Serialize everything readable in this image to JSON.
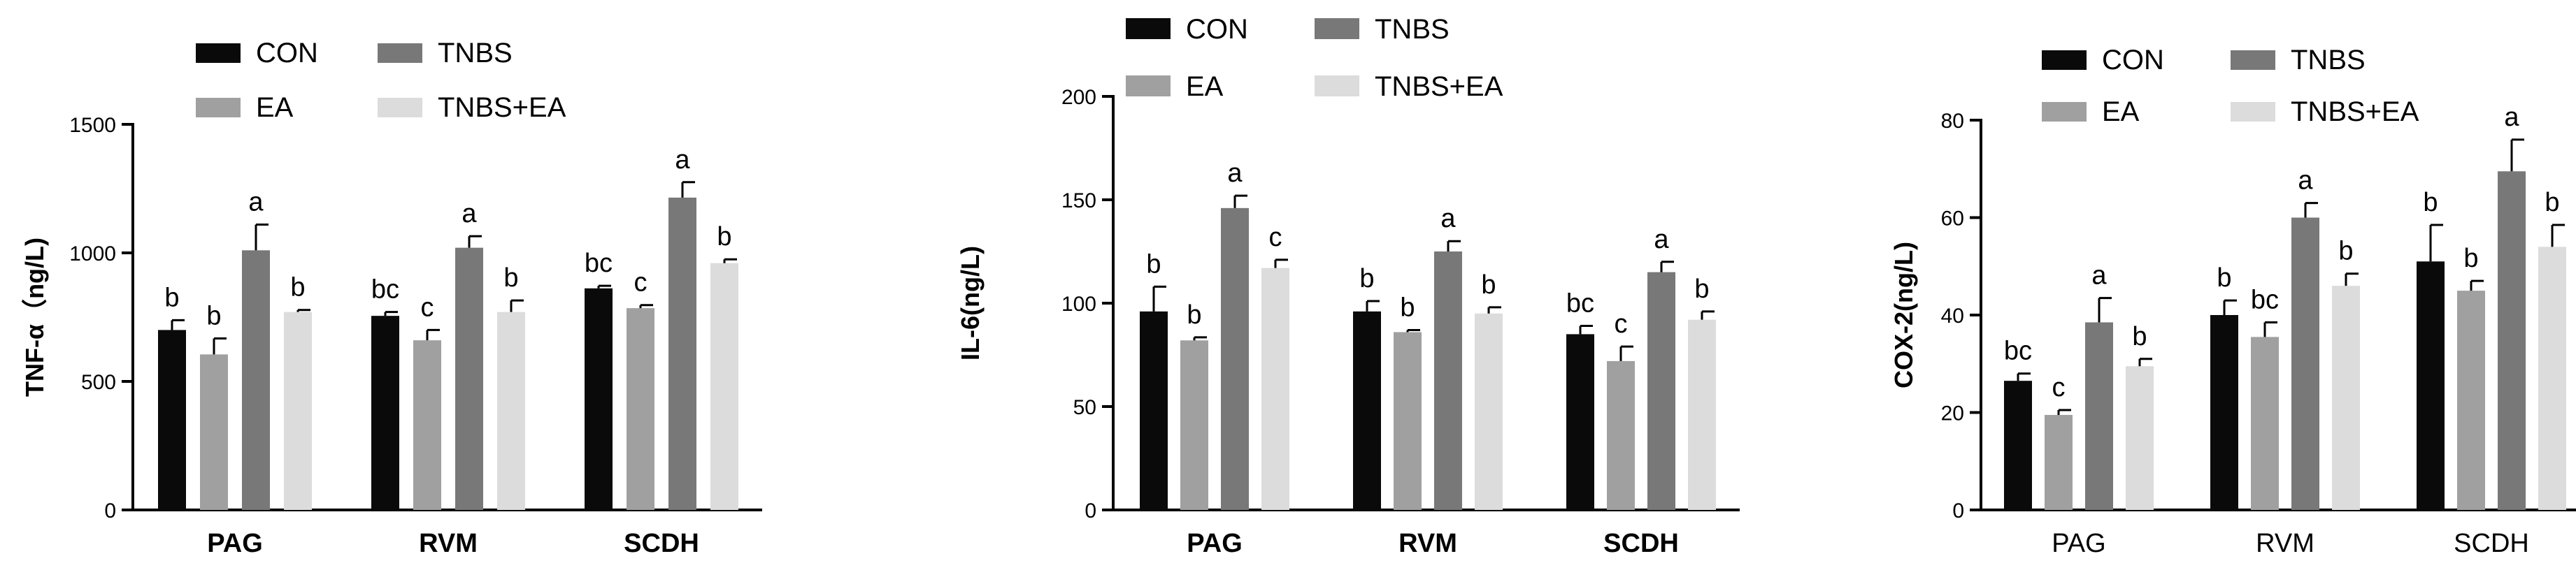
{
  "series_colors": {
    "CON": "#0a0a0a",
    "EA": "#a0a0a0",
    "TNBS": "#787878",
    "TNBS+EA": "#dcdcdc"
  },
  "chart_data": [
    {
      "type": "bar",
      "ylabel": "TNF-α（ng/L)",
      "ylim": [
        0,
        1500
      ],
      "yticks": [
        0,
        500,
        1000,
        1500
      ],
      "category_style": "bold",
      "categories": [
        "PAG",
        "RVM",
        "SCDH"
      ],
      "legend": [
        "CON",
        "TNBS",
        "EA",
        "TNBS+EA"
      ],
      "series": [
        {
          "name": "CON",
          "values": [
            700,
            755,
            862
          ],
          "errors": [
            38,
            15,
            10
          ],
          "letters": [
            "b",
            "bc",
            "bc"
          ]
        },
        {
          "name": "EA",
          "values": [
            605,
            660,
            785
          ],
          "errors": [
            62,
            40,
            12
          ],
          "letters": [
            "b",
            "c",
            "c"
          ]
        },
        {
          "name": "TNBS",
          "values": [
            1010,
            1020,
            1215
          ],
          "errors": [
            100,
            45,
            60
          ],
          "letters": [
            "a",
            "a",
            "a"
          ]
        },
        {
          "name": "TNBS+EA",
          "values": [
            770,
            770,
            960
          ],
          "errors": [
            8,
            45,
            15
          ],
          "letters": [
            "b",
            "b",
            "b"
          ]
        }
      ]
    },
    {
      "type": "bar",
      "ylabel": "IL-6(ng/L)",
      "ylim": [
        0,
        200
      ],
      "yticks": [
        0,
        50,
        100,
        150,
        200
      ],
      "category_style": "bold",
      "categories": [
        "PAG",
        "RVM",
        "SCDH"
      ],
      "legend": [
        "CON",
        "TNBS",
        "EA",
        "TNBS+EA"
      ],
      "series": [
        {
          "name": "CON",
          "values": [
            96,
            96,
            85
          ],
          "errors": [
            12,
            5,
            4
          ],
          "letters": [
            "b",
            "b",
            "bc"
          ]
        },
        {
          "name": "EA",
          "values": [
            82,
            86,
            72
          ],
          "errors": [
            1.5,
            1,
            7
          ],
          "letters": [
            "b",
            "b",
            "c"
          ]
        },
        {
          "name": "TNBS",
          "values": [
            146,
            125,
            115
          ],
          "errors": [
            6,
            5,
            5
          ],
          "letters": [
            "a",
            "a",
            "a"
          ]
        },
        {
          "name": "TNBS+EA",
          "values": [
            117,
            95,
            92
          ],
          "errors": [
            4,
            3,
            4
          ],
          "letters": [
            "c",
            "b",
            "b"
          ]
        }
      ]
    },
    {
      "type": "bar",
      "ylabel": "COX-2(ng/L)",
      "ylim": [
        0,
        80
      ],
      "yticks": [
        0,
        20,
        40,
        60,
        80
      ],
      "category_style": "normal",
      "categories": [
        "PAG",
        "RVM",
        "SCDH"
      ],
      "legend": [
        "CON",
        "TNBS",
        "EA",
        "TNBS+EA"
      ],
      "series": [
        {
          "name": "CON",
          "values": [
            26.5,
            40,
            51
          ],
          "errors": [
            1.5,
            3,
            7.5
          ],
          "letters": [
            "bc",
            "b",
            "b"
          ]
        },
        {
          "name": "EA",
          "values": [
            19.5,
            35.5,
            45
          ],
          "errors": [
            1,
            3,
            2
          ],
          "letters": [
            "c",
            "bc",
            "b"
          ]
        },
        {
          "name": "TNBS",
          "values": [
            38.5,
            60,
            69.5
          ],
          "errors": [
            5,
            3,
            6.5
          ],
          "letters": [
            "a",
            "a",
            "a"
          ]
        },
        {
          "name": "TNBS+EA",
          "values": [
            29.5,
            46,
            54
          ],
          "errors": [
            1.5,
            2.5,
            4.5
          ],
          "letters": [
            "b",
            "b",
            "b"
          ]
        }
      ]
    }
  ]
}
